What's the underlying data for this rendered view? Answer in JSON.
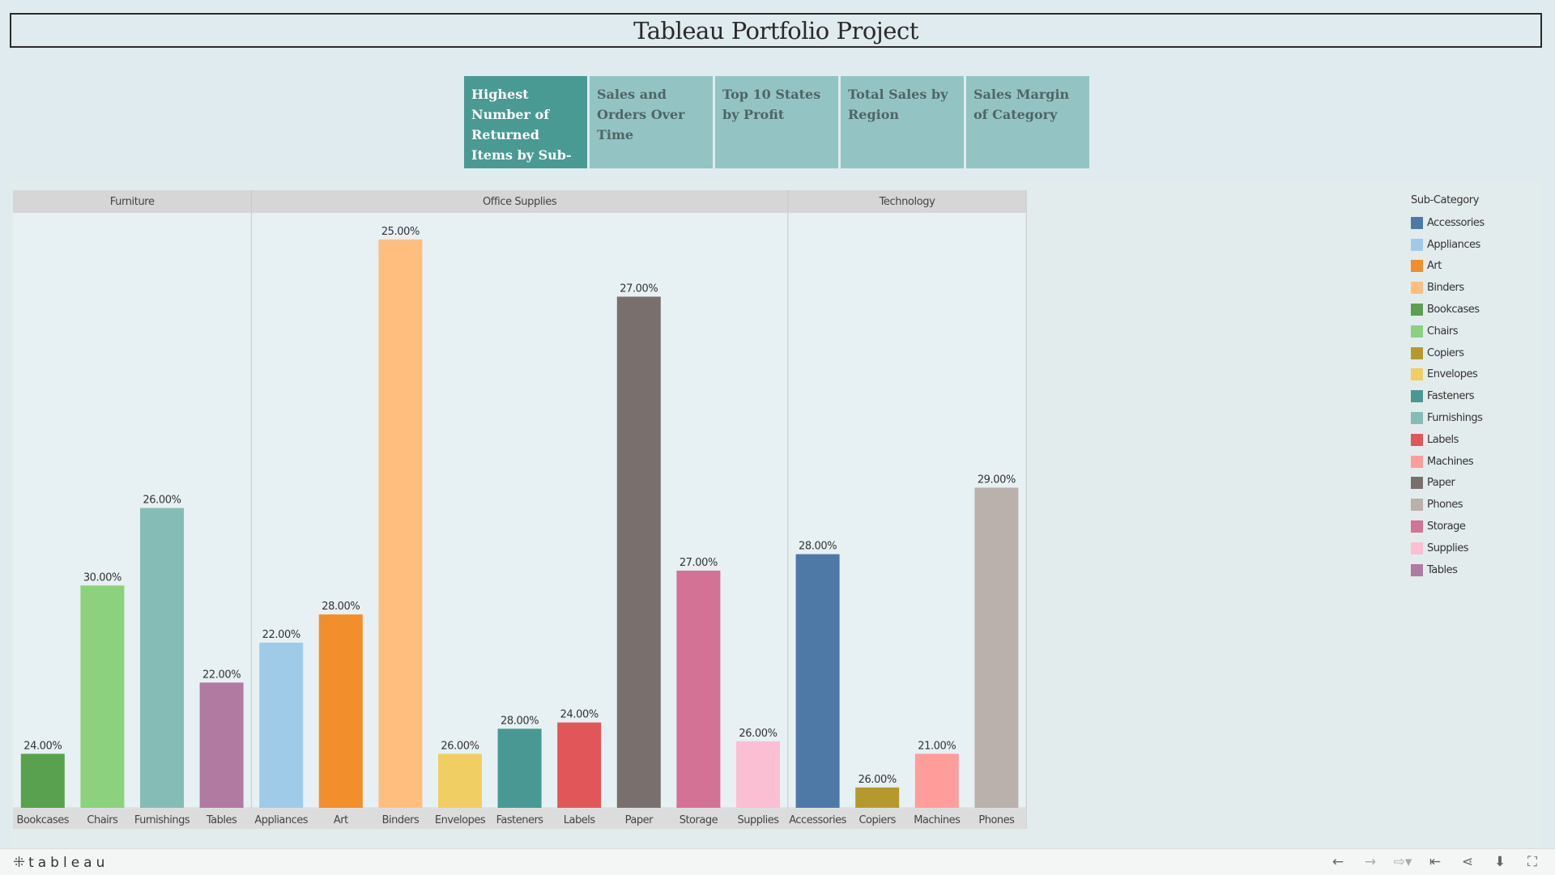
{
  "dashboard": {
    "title": "Tableau Portfolio Project"
  },
  "tabs": [
    {
      "label": "Highest Number of Returned Items by Sub-Category",
      "active": true
    },
    {
      "label": "Sales and Orders Over Time",
      "active": false
    },
    {
      "label": "Top 10 States by Profit",
      "active": false
    },
    {
      "label": "Total Sales by Region",
      "active": false
    },
    {
      "label": "Sales Margin of Category",
      "active": false
    }
  ],
  "chart_data": {
    "type": "bar",
    "groups": [
      {
        "name": "Furniture",
        "categories": [
          "Bookcases",
          "Chairs",
          "Furnishings",
          "Tables"
        ]
      },
      {
        "name": "Office Supplies",
        "categories": [
          "Appliances",
          "Art",
          "Binders",
          "Envelopes",
          "Fasteners",
          "Labels",
          "Paper",
          "Storage",
          "Supplies"
        ]
      },
      {
        "name": "Technology",
        "categories": [
          "Accessories",
          "Copiers",
          "Machines",
          "Phones"
        ]
      }
    ],
    "bars": [
      {
        "group": "Furniture",
        "category": "Bookcases",
        "value": 69,
        "label": "24.00%",
        "color": "#59a14f"
      },
      {
        "group": "Furniture",
        "category": "Chairs",
        "value": 284,
        "label": "30.00%",
        "color": "#8cd17d"
      },
      {
        "group": "Furniture",
        "category": "Furnishings",
        "value": 383,
        "label": "26.00%",
        "color": "#86bcb6"
      },
      {
        "group": "Furniture",
        "category": "Tables",
        "value": 160,
        "label": "22.00%",
        "color": "#b07aa1"
      },
      {
        "group": "Office Supplies",
        "category": "Appliances",
        "value": 211,
        "label": "22.00%",
        "color": "#a0cbe8"
      },
      {
        "group": "Office Supplies",
        "category": "Art",
        "value": 247,
        "label": "28.00%",
        "color": "#f28e2b"
      },
      {
        "group": "Office Supplies",
        "category": "Binders",
        "value": 726,
        "label": "25.00%",
        "color": "#ffbe7d"
      },
      {
        "group": "Office Supplies",
        "category": "Envelopes",
        "value": 69,
        "label": "26.00%",
        "color": "#f1ce63"
      },
      {
        "group": "Office Supplies",
        "category": "Fasteners",
        "value": 101,
        "label": "28.00%",
        "color": "#499894"
      },
      {
        "group": "Office Supplies",
        "category": "Labels",
        "value": 109,
        "label": "24.00%",
        "color": "#e15759"
      },
      {
        "group": "Office Supplies",
        "category": "Paper",
        "value": 653,
        "label": "27.00%",
        "color": "#79706e"
      },
      {
        "group": "Office Supplies",
        "category": "Storage",
        "value": 303,
        "label": "27.00%",
        "color": "#d37295"
      },
      {
        "group": "Office Supplies",
        "category": "Supplies",
        "value": 85,
        "label": "26.00%",
        "color": "#fabfd2"
      },
      {
        "group": "Technology",
        "category": "Accessories",
        "value": 324,
        "label": "28.00%",
        "color": "#4e79a7"
      },
      {
        "group": "Technology",
        "category": "Copiers",
        "value": 26,
        "label": "26.00%",
        "color": "#b6992d"
      },
      {
        "group": "Technology",
        "category": "Machines",
        "value": 69,
        "label": "21.00%",
        "color": "#ff9d9a"
      },
      {
        "group": "Technology",
        "category": "Phones",
        "value": 409,
        "label": "29.00%",
        "color": "#bab0ac"
      }
    ],
    "ylim": [
      0,
      760
    ],
    "legend": {
      "title": "Sub-Category",
      "placement": "right",
      "items": [
        {
          "label": "Accessories",
          "color": "#4e79a7"
        },
        {
          "label": "Appliances",
          "color": "#a0cbe8"
        },
        {
          "label": "Art",
          "color": "#f28e2b"
        },
        {
          "label": "Binders",
          "color": "#ffbe7d"
        },
        {
          "label": "Bookcases",
          "color": "#59a14f"
        },
        {
          "label": "Chairs",
          "color": "#8cd17d"
        },
        {
          "label": "Copiers",
          "color": "#b6992d"
        },
        {
          "label": "Envelopes",
          "color": "#f1ce63"
        },
        {
          "label": "Fasteners",
          "color": "#499894"
        },
        {
          "label": "Furnishings",
          "color": "#86bcb6"
        },
        {
          "label": "Labels",
          "color": "#e15759"
        },
        {
          "label": "Machines",
          "color": "#ff9d9a"
        },
        {
          "label": "Paper",
          "color": "#79706e"
        },
        {
          "label": "Phones",
          "color": "#bab0ac"
        },
        {
          "label": "Storage",
          "color": "#d37295"
        },
        {
          "label": "Supplies",
          "color": "#fabfd2"
        },
        {
          "label": "Tables",
          "color": "#b07aa1"
        }
      ]
    }
  },
  "footer": {
    "brand": "tableau",
    "icons": [
      "undo-icon",
      "redo-icon",
      "revert-icon",
      "reset-icon",
      "share-icon",
      "download-icon",
      "fullscreen-icon"
    ]
  }
}
